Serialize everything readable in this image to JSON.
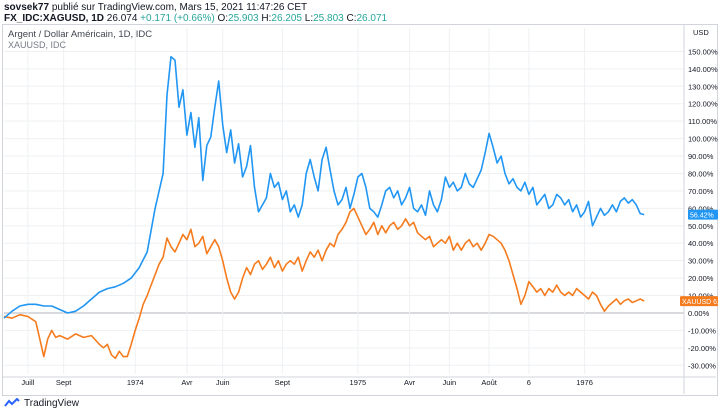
{
  "header": {
    "user": "sovsek77",
    "published_text": "publié sur TradingView.com, Mars 15, 2021 11:47:26 CET",
    "symbol": "FX_IDC:XAGUSD, 1D",
    "last": "26.074",
    "change": "+0.171 (+0.66%)",
    "o_label": "O:",
    "o_value": "25.903",
    "h_label": "H:",
    "h_value": "26.205",
    "l_label": "L:",
    "l_value": "25.803",
    "c_label": "C:",
    "c_value": "26.071"
  },
  "footer": {
    "brand": "TradingView"
  },
  "colors": {
    "series1": "#2196f3",
    "series2": "#f57c1e",
    "grid": "#eef0f3",
    "axis_text": "#131722",
    "zero_line": "#b2b5be"
  },
  "chart_data": {
    "type": "line",
    "title": "Argent / Dollar Américain, 1D, IDC",
    "subtitle": "XAUUSD, IDC",
    "y_axis_currency": "USD",
    "ylim": [
      -35,
      160
    ],
    "y_ticks": [
      {
        "value": 150,
        "label": "150.00%"
      },
      {
        "value": 140,
        "label": "140.00%"
      },
      {
        "value": 130,
        "label": "130.00%"
      },
      {
        "value": 120,
        "label": "120.00%"
      },
      {
        "value": 110,
        "label": "110.00%"
      },
      {
        "value": 100,
        "label": "100.00%"
      },
      {
        "value": 90,
        "label": "90.00%"
      },
      {
        "value": 80,
        "label": "80.00%"
      },
      {
        "value": 70,
        "label": "70.00%"
      },
      {
        "value": 60,
        "label": "60.00%"
      },
      {
        "value": 50,
        "label": "50.00%"
      },
      {
        "value": 40,
        "label": "40.00%"
      },
      {
        "value": 30,
        "label": "30.00%"
      },
      {
        "value": 20,
        "label": "20.00%"
      },
      {
        "value": 10,
        "label": "10.00%"
      },
      {
        "value": 0,
        "label": "0.00%"
      },
      {
        "value": -10,
        "label": "-10.00%"
      },
      {
        "value": -20,
        "label": "-20.00%"
      },
      {
        "value": -30,
        "label": "-30.00%"
      }
    ],
    "xlim": [
      0,
      170
    ],
    "x_ticks": [
      {
        "x": 6,
        "label": "Juill"
      },
      {
        "x": 15,
        "label": "Sept"
      },
      {
        "x": 33,
        "label": "1974"
      },
      {
        "x": 46,
        "label": "Avr"
      },
      {
        "x": 55,
        "label": "Juin"
      },
      {
        "x": 70,
        "label": "Sept"
      },
      {
        "x": 89,
        "label": "1975"
      },
      {
        "x": 102,
        "label": "Avr"
      },
      {
        "x": 112,
        "label": "Juin"
      },
      {
        "x": 122,
        "label": "Août"
      },
      {
        "x": 132,
        "label": "6"
      },
      {
        "x": 146,
        "label": "1976"
      }
    ],
    "series": [
      {
        "name": "XAGUSD",
        "last_label": "56.42%",
        "values": [
          [
            0,
            -3
          ],
          [
            2,
            1
          ],
          [
            4,
            4
          ],
          [
            6,
            5
          ],
          [
            8,
            5
          ],
          [
            10,
            4
          ],
          [
            12,
            4
          ],
          [
            14,
            2
          ],
          [
            16,
            0
          ],
          [
            18,
            1
          ],
          [
            20,
            4
          ],
          [
            22,
            8
          ],
          [
            24,
            12
          ],
          [
            26,
            14
          ],
          [
            28,
            15
          ],
          [
            30,
            17
          ],
          [
            32,
            20
          ],
          [
            34,
            26
          ],
          [
            36,
            35
          ],
          [
            38,
            60
          ],
          [
            40,
            80
          ],
          [
            41,
            125
          ],
          [
            42,
            147
          ],
          [
            43,
            145
          ],
          [
            44,
            118
          ],
          [
            45,
            128
          ],
          [
            46,
            102
          ],
          [
            47,
            115
          ],
          [
            48,
            95
          ],
          [
            49,
            112
          ],
          [
            50,
            76
          ],
          [
            51,
            96
          ],
          [
            52,
            101
          ],
          [
            53,
            118
          ],
          [
            54,
            133
          ],
          [
            55,
            108
          ],
          [
            56,
            92
          ],
          [
            57,
            105
          ],
          [
            58,
            86
          ],
          [
            59,
            97
          ],
          [
            60,
            78
          ],
          [
            61,
            84
          ],
          [
            62,
            96
          ],
          [
            63,
            72
          ],
          [
            64,
            58
          ],
          [
            65,
            62
          ],
          [
            66,
            66
          ],
          [
            67,
            80
          ],
          [
            68,
            72
          ],
          [
            69,
            75
          ],
          [
            70,
            65
          ],
          [
            71,
            70
          ],
          [
            72,
            58
          ],
          [
            73,
            62
          ],
          [
            74,
            55
          ],
          [
            75,
            62
          ],
          [
            76,
            80
          ],
          [
            77,
            88
          ],
          [
            78,
            78
          ],
          [
            79,
            70
          ],
          [
            80,
            88
          ],
          [
            81,
            95
          ],
          [
            82,
            82
          ],
          [
            83,
            70
          ],
          [
            84,
            62
          ],
          [
            85,
            65
          ],
          [
            86,
            72
          ],
          [
            87,
            60
          ],
          [
            88,
            68
          ],
          [
            89,
            78
          ],
          [
            90,
            80
          ],
          [
            91,
            72
          ],
          [
            92,
            60
          ],
          [
            93,
            58
          ],
          [
            94,
            55
          ],
          [
            95,
            62
          ],
          [
            96,
            70
          ],
          [
            97,
            72
          ],
          [
            98,
            66
          ],
          [
            99,
            70
          ],
          [
            100,
            62
          ],
          [
            101,
            66
          ],
          [
            102,
            72
          ],
          [
            103,
            60
          ],
          [
            104,
            58
          ],
          [
            105,
            62
          ],
          [
            106,
            56
          ],
          [
            107,
            70
          ],
          [
            108,
            62
          ],
          [
            109,
            58
          ],
          [
            110,
            65
          ],
          [
            111,
            78
          ],
          [
            112,
            72
          ],
          [
            113,
            75
          ],
          [
            114,
            70
          ],
          [
            115,
            72
          ],
          [
            116,
            80
          ],
          [
            117,
            74
          ],
          [
            118,
            72
          ],
          [
            119,
            77
          ],
          [
            120,
            82
          ],
          [
            121,
            92
          ],
          [
            122,
            103
          ],
          [
            123,
            95
          ],
          [
            124,
            86
          ],
          [
            125,
            90
          ],
          [
            126,
            80
          ],
          [
            127,
            74
          ],
          [
            128,
            77
          ],
          [
            129,
            72
          ],
          [
            130,
            70
          ],
          [
            131,
            75
          ],
          [
            132,
            68
          ],
          [
            133,
            72
          ],
          [
            134,
            62
          ],
          [
            135,
            65
          ],
          [
            136,
            68
          ],
          [
            137,
            60
          ],
          [
            138,
            62
          ],
          [
            139,
            68
          ],
          [
            140,
            66
          ],
          [
            141,
            62
          ],
          [
            142,
            65
          ],
          [
            143,
            58
          ],
          [
            144,
            62
          ],
          [
            145,
            55
          ],
          [
            146,
            58
          ],
          [
            147,
            64
          ],
          [
            148,
            50
          ],
          [
            149,
            55
          ],
          [
            150,
            60
          ],
          [
            151,
            56
          ],
          [
            152,
            58
          ],
          [
            153,
            62
          ],
          [
            154,
            58
          ],
          [
            155,
            64
          ],
          [
            156,
            66
          ],
          [
            157,
            63
          ],
          [
            158,
            65
          ],
          [
            159,
            62
          ],
          [
            160,
            57
          ],
          [
            161,
            56.42
          ]
        ]
      },
      {
        "name": "XAUUSD",
        "last_label": "6.81%",
        "values": [
          [
            0,
            -2
          ],
          [
            2,
            -3
          ],
          [
            4,
            -1
          ],
          [
            6,
            -2
          ],
          [
            8,
            -5
          ],
          [
            9,
            -15
          ],
          [
            10,
            -25
          ],
          [
            11,
            -15
          ],
          [
            12,
            -10
          ],
          [
            13,
            -14
          ],
          [
            14,
            -13
          ],
          [
            16,
            -15
          ],
          [
            18,
            -12
          ],
          [
            20,
            -14
          ],
          [
            22,
            -13
          ],
          [
            24,
            -18
          ],
          [
            25,
            -20
          ],
          [
            26,
            -18
          ],
          [
            27,
            -24
          ],
          [
            28,
            -26
          ],
          [
            29,
            -22
          ],
          [
            30,
            -25
          ],
          [
            31,
            -25
          ],
          [
            32,
            -18
          ],
          [
            33,
            -10
          ],
          [
            34,
            -3
          ],
          [
            35,
            5
          ],
          [
            36,
            10
          ],
          [
            37,
            16
          ],
          [
            38,
            22
          ],
          [
            39,
            28
          ],
          [
            40,
            32
          ],
          [
            41,
            43
          ],
          [
            42,
            38
          ],
          [
            43,
            35
          ],
          [
            44,
            40
          ],
          [
            45,
            45
          ],
          [
            46,
            42
          ],
          [
            47,
            48
          ],
          [
            48,
            38
          ],
          [
            49,
            40
          ],
          [
            50,
            44
          ],
          [
            51,
            34
          ],
          [
            52,
            38
          ],
          [
            53,
            42
          ],
          [
            54,
            38
          ],
          [
            55,
            30
          ],
          [
            56,
            20
          ],
          [
            57,
            12
          ],
          [
            58,
            8
          ],
          [
            59,
            12
          ],
          [
            60,
            20
          ],
          [
            61,
            26
          ],
          [
            62,
            22
          ],
          [
            63,
            28
          ],
          [
            64,
            30
          ],
          [
            65,
            25
          ],
          [
            66,
            28
          ],
          [
            67,
            32
          ],
          [
            68,
            26
          ],
          [
            69,
            30
          ],
          [
            70,
            24
          ],
          [
            71,
            28
          ],
          [
            72,
            30
          ],
          [
            73,
            28
          ],
          [
            74,
            32
          ],
          [
            75,
            24
          ],
          [
            76,
            30
          ],
          [
            77,
            35
          ],
          [
            78,
            32
          ],
          [
            79,
            36
          ],
          [
            80,
            30
          ],
          [
            81,
            36
          ],
          [
            82,
            40
          ],
          [
            83,
            38
          ],
          [
            84,
            45
          ],
          [
            85,
            48
          ],
          [
            86,
            52
          ],
          [
            87,
            58
          ],
          [
            88,
            60
          ],
          [
            89,
            55
          ],
          [
            90,
            50
          ],
          [
            91,
            45
          ],
          [
            92,
            48
          ],
          [
            93,
            52
          ],
          [
            94,
            45
          ],
          [
            95,
            50
          ],
          [
            96,
            46
          ],
          [
            97,
            50
          ],
          [
            98,
            52
          ],
          [
            99,
            48
          ],
          [
            100,
            50
          ],
          [
            101,
            54
          ],
          [
            102,
            50
          ],
          [
            103,
            52
          ],
          [
            104,
            46
          ],
          [
            105,
            44
          ],
          [
            106,
            42
          ],
          [
            107,
            44
          ],
          [
            108,
            38
          ],
          [
            109,
            40
          ],
          [
            110,
            42
          ],
          [
            111,
            40
          ],
          [
            112,
            44
          ],
          [
            113,
            36
          ],
          [
            114,
            40
          ],
          [
            115,
            36
          ],
          [
            116,
            40
          ],
          [
            117,
            42
          ],
          [
            118,
            38
          ],
          [
            119,
            40
          ],
          [
            120,
            36
          ],
          [
            121,
            40
          ],
          [
            122,
            45
          ],
          [
            123,
            44
          ],
          [
            124,
            42
          ],
          [
            125,
            40
          ],
          [
            126,
            36
          ],
          [
            127,
            30
          ],
          [
            128,
            22
          ],
          [
            129,
            14
          ],
          [
            130,
            5
          ],
          [
            131,
            10
          ],
          [
            132,
            18
          ],
          [
            133,
            15
          ],
          [
            134,
            12
          ],
          [
            135,
            14
          ],
          [
            136,
            10
          ],
          [
            137,
            14
          ],
          [
            138,
            12
          ],
          [
            139,
            16
          ],
          [
            140,
            12
          ],
          [
            141,
            10
          ],
          [
            142,
            12
          ],
          [
            143,
            10
          ],
          [
            144,
            14
          ],
          [
            145,
            12
          ],
          [
            146,
            10
          ],
          [
            147,
            8
          ],
          [
            148,
            12
          ],
          [
            149,
            10
          ],
          [
            150,
            5
          ],
          [
            151,
            1
          ],
          [
            152,
            4
          ],
          [
            153,
            6
          ],
          [
            154,
            8
          ],
          [
            155,
            5
          ],
          [
            156,
            7
          ],
          [
            157,
            8
          ],
          [
            158,
            6
          ],
          [
            159,
            7
          ],
          [
            160,
            8
          ],
          [
            161,
            6.81
          ]
        ]
      }
    ]
  }
}
